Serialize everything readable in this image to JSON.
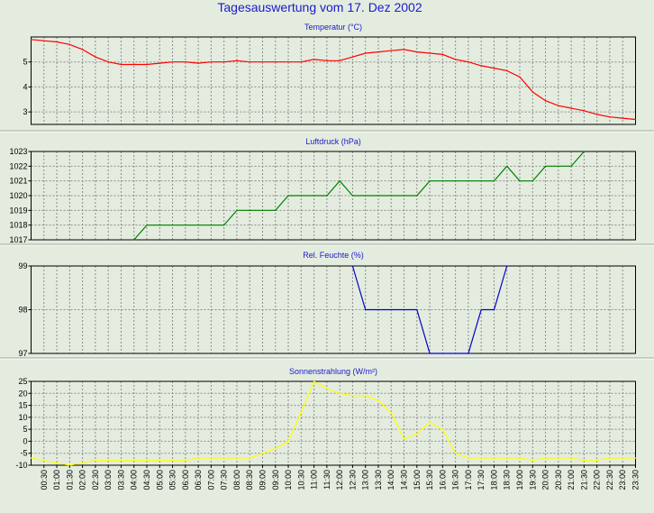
{
  "title": "Tagesauswertung vom 17. Dez 2002",
  "x_tick_labels": [
    "00:30",
    "01:00",
    "01:30",
    "02:00",
    "02:30",
    "03:00",
    "03:30",
    "04:00",
    "04:30",
    "05:00",
    "05:30",
    "06:00",
    "06:30",
    "07:00",
    "07:30",
    "08:00",
    "08:30",
    "09:00",
    "09:30",
    "10:00",
    "10:30",
    "11:00",
    "11:30",
    "12:00",
    "12:30",
    "13:00",
    "13:30",
    "14:00",
    "14:30",
    "15:00",
    "15:30",
    "16:00",
    "16:30",
    "17:00",
    "17:30",
    "18:00",
    "18:30",
    "19:00",
    "19:30",
    "20:00",
    "20:30",
    "21:00",
    "21:30",
    "22:00",
    "22:30",
    "23:00",
    "23:30"
  ],
  "colors": {
    "background": "#e4ecdf",
    "plot_background": "#e4ecdf",
    "title": "#1a1acc",
    "grid": "#8c8c8c",
    "axis": "#000000"
  },
  "chart_data": [
    {
      "type": "line",
      "title": "Temperatur (°C)",
      "color": "#ff0000",
      "ylim": [
        2.5,
        6.0
      ],
      "yticks": [
        3,
        4,
        5
      ],
      "grid": true,
      "x": [
        "00:00",
        "00:30",
        "01:00",
        "01:30",
        "02:00",
        "02:30",
        "03:00",
        "03:30",
        "04:00",
        "04:30",
        "05:00",
        "05:30",
        "06:00",
        "06:30",
        "07:00",
        "07:30",
        "08:00",
        "08:30",
        "09:00",
        "09:30",
        "10:00",
        "10:30",
        "11:00",
        "11:30",
        "12:00",
        "12:30",
        "13:00",
        "13:30",
        "14:00",
        "14:30",
        "15:00",
        "15:30",
        "16:00",
        "16:30",
        "17:00",
        "17:30",
        "18:00",
        "18:30",
        "19:00",
        "19:30",
        "20:00",
        "20:30",
        "21:00",
        "21:30",
        "22:00",
        "22:30",
        "23:00",
        "23:30"
      ],
      "values": [
        5.9,
        5.85,
        5.8,
        5.7,
        5.5,
        5.2,
        5.0,
        4.9,
        4.9,
        4.9,
        4.95,
        5.0,
        5.0,
        4.95,
        5.0,
        5.0,
        5.05,
        5.0,
        5.0,
        5.0,
        5.0,
        5.0,
        5.1,
        5.05,
        5.05,
        5.2,
        5.35,
        5.4,
        5.45,
        5.5,
        5.4,
        5.35,
        5.3,
        5.1,
        5.0,
        4.85,
        4.75,
        4.65,
        4.4,
        3.8,
        3.45,
        3.25,
        3.15,
        3.05,
        2.9,
        2.8,
        2.75,
        2.7
      ]
    },
    {
      "type": "line",
      "title": "Luftdruck (hPa)",
      "color": "#008000",
      "ylim": [
        1017,
        1023
      ],
      "yticks": [
        1017,
        1018,
        1019,
        1020,
        1021,
        1022,
        1023
      ],
      "grid": true,
      "x": [
        "04:00",
        "04:30",
        "05:00",
        "05:30",
        "06:00",
        "06:30",
        "07:00",
        "07:30",
        "08:00",
        "08:30",
        "09:00",
        "09:30",
        "10:00",
        "10:30",
        "11:00",
        "11:30",
        "12:00",
        "12:30",
        "13:00",
        "13:30",
        "14:00",
        "14:30",
        "15:00",
        "15:30",
        "16:00",
        "16:30",
        "17:00",
        "17:30",
        "18:00",
        "18:30",
        "19:00",
        "19:30",
        "20:00",
        "20:30",
        "21:00",
        "21:30"
      ],
      "values": [
        1017,
        1018,
        1018,
        1018,
        1018,
        1018,
        1018,
        1018,
        1019,
        1019,
        1019,
        1019,
        1020,
        1020,
        1020,
        1020,
        1021,
        1020,
        1020,
        1020,
        1020,
        1020,
        1020,
        1021,
        1021,
        1021,
        1021,
        1021,
        1021,
        1022,
        1021,
        1021,
        1022,
        1022,
        1022,
        1023
      ]
    },
    {
      "type": "line",
      "title": "Rel. Feuchte (%)",
      "color": "#0000cc",
      "ylim": [
        97,
        99
      ],
      "yticks": [
        97,
        98,
        99
      ],
      "grid": true,
      "x": [
        "12:30",
        "13:00",
        "13:30",
        "14:00",
        "14:30",
        "15:00",
        "15:30",
        "16:00",
        "16:30",
        "17:00",
        "17:30",
        "18:00",
        "18:30"
      ],
      "values": [
        99,
        98,
        98,
        98,
        98,
        98,
        97,
        97,
        97,
        97,
        98,
        98,
        99
      ]
    },
    {
      "type": "line",
      "title": "Sonnenstrahlung (W/m²)",
      "color": "#ffff00",
      "ylim": [
        -10,
        25
      ],
      "yticks": [
        -10,
        -5,
        0,
        5,
        10,
        15,
        20,
        25
      ],
      "grid": true,
      "x": [
        "00:00",
        "00:30",
        "01:00",
        "01:30",
        "02:00",
        "02:30",
        "03:00",
        "03:30",
        "04:00",
        "04:30",
        "05:00",
        "05:30",
        "06:00",
        "06:30",
        "07:00",
        "07:30",
        "08:00",
        "08:30",
        "09:00",
        "09:30",
        "10:00",
        "10:30",
        "11:00",
        "11:30",
        "12:00",
        "12:30",
        "13:00",
        "13:30",
        "14:00",
        "14:30",
        "15:00",
        "15:30",
        "16:00",
        "16:30",
        "17:00",
        "17:30",
        "18:00",
        "18:30",
        "19:00",
        "19:30",
        "20:00",
        "20:30",
        "21:00",
        "21:30",
        "22:00",
        "22:30",
        "23:00",
        "23:30"
      ],
      "values": [
        -7,
        -8,
        -9,
        -10,
        -9,
        -8,
        -8,
        -8,
        -8,
        -8,
        -8,
        -8,
        -8,
        -7,
        -7,
        -7,
        -7,
        -7,
        -5,
        -3,
        0,
        12,
        25,
        22,
        20,
        19,
        19,
        17,
        12,
        1,
        3,
        8,
        5,
        -5,
        -7,
        -7,
        -7,
        -7,
        -7,
        -8,
        -7,
        -7,
        -7,
        -8,
        -8,
        -7,
        -7,
        -7
      ]
    }
  ]
}
